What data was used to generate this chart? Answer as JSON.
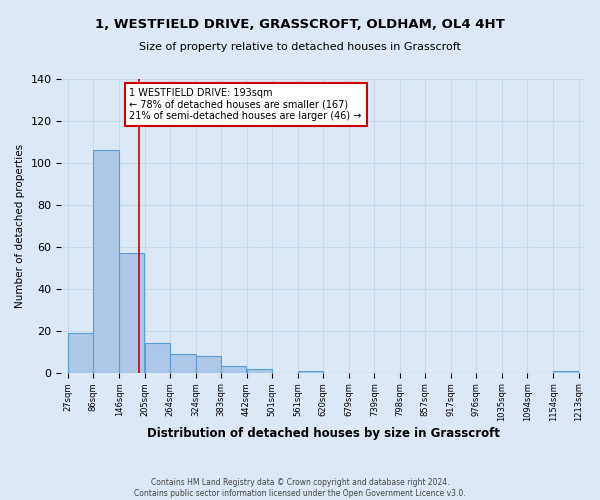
{
  "title": "1, WESTFIELD DRIVE, GRASSCROFT, OLDHAM, OL4 4HT",
  "subtitle": "Size of property relative to detached houses in Grasscroft",
  "xlabel": "Distribution of detached houses by size in Grasscroft",
  "ylabel": "Number of detached properties",
  "bin_edges": [
    27,
    86,
    146,
    205,
    264,
    324,
    383,
    442,
    501,
    561,
    620,
    679,
    739,
    798,
    857,
    917,
    976,
    1035,
    1094,
    1154,
    1213
  ],
  "bar_heights": [
    19,
    106,
    57,
    14,
    9,
    8,
    3,
    2,
    0,
    1,
    0,
    0,
    0,
    0,
    0,
    0,
    0,
    0,
    0,
    1
  ],
  "bar_color": "#aec6e8",
  "bar_edge_color": "#5a9fd4",
  "grid_color": "#c8d8ec",
  "property_line_x": 193,
  "property_line_color": "#cc0000",
  "annotation_text": "1 WESTFIELD DRIVE: 193sqm\n← 78% of detached houses are smaller (167)\n21% of semi-detached houses are larger (46) →",
  "annotation_box_color": "#ffffff",
  "annotation_box_edge_color": "#cc0000",
  "ylim": [
    0,
    140
  ],
  "yticks": [
    0,
    20,
    40,
    60,
    80,
    100,
    120,
    140
  ],
  "footnote": "Contains HM Land Registry data © Crown copyright and database right 2024.\nContains public sector information licensed under the Open Government Licence v3.0.",
  "background_color": "#dce8f5",
  "plot_bg_color": "#dce8f5"
}
